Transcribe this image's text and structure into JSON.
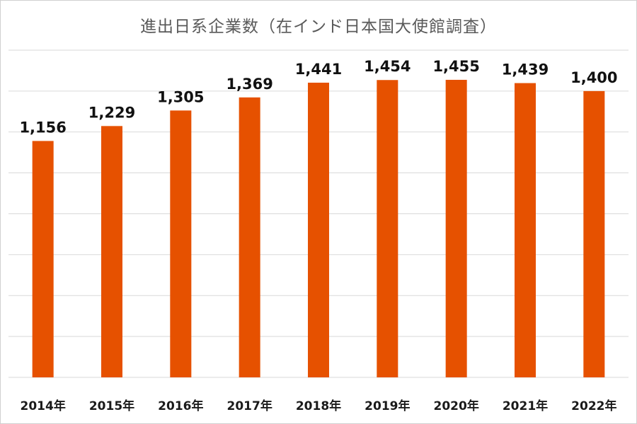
{
  "chart_data": {
    "type": "bar",
    "title": "進出日系企業数（在インド日本国大使館調査）",
    "xlabel": "",
    "ylabel": "",
    "categories": [
      "2014年",
      "2015年",
      "2016年",
      "2017年",
      "2018年",
      "2019年",
      "2020年",
      "2021年",
      "2022年"
    ],
    "values": [
      1156,
      1229,
      1305,
      1369,
      1441,
      1454,
      1455,
      1439,
      1400
    ],
    "value_labels": [
      "1,156",
      "1,229",
      "1,305",
      "1,369",
      "1,441",
      "1,454",
      "1,455",
      "1,439",
      "1,400"
    ],
    "ylim": [
      0,
      1600
    ],
    "grid": true,
    "legend": "none",
    "colors": {
      "bar": "#e65100",
      "grid": "#d9d9d9"
    }
  }
}
